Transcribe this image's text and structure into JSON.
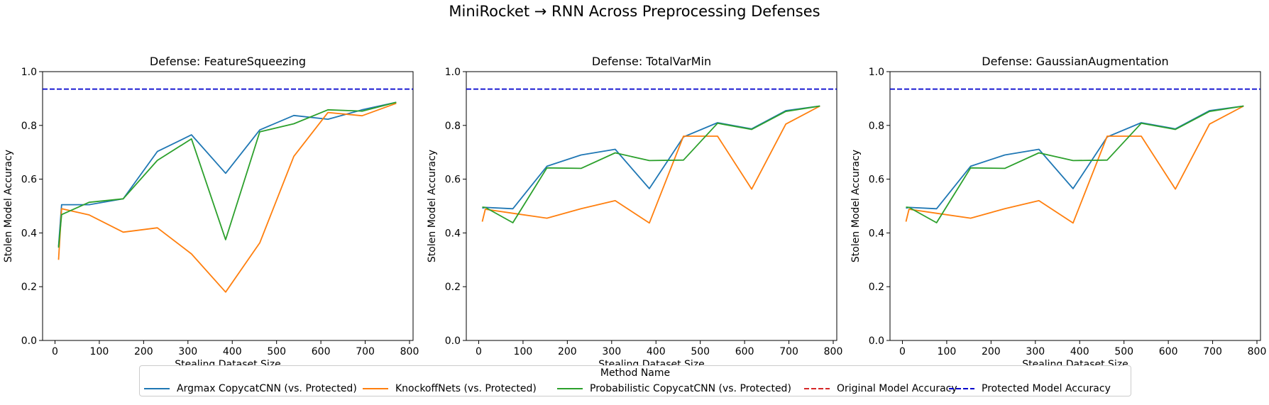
{
  "title": "MiniRocket → RNN Across Preprocessing Defenses",
  "colors": {
    "argmax": "#1f77b4",
    "knockoff": "#ff7f0e",
    "probabilistic": "#2ca02c",
    "original": "#d62728",
    "protected": "#0000cc"
  },
  "legend": {
    "title": "Method Name",
    "items": [
      {
        "label": "Argmax CopycatCNN (vs. Protected)",
        "color_key": "argmax",
        "dashed": false
      },
      {
        "label": "KnockoffNets (vs. Protected)",
        "color_key": "knockoff",
        "dashed": false
      },
      {
        "label": "Probabilistic CopycatCNN (vs. Protected)",
        "color_key": "probabilistic",
        "dashed": false
      },
      {
        "label": "Original Model Accuracy",
        "color_key": "original",
        "dashed": true
      },
      {
        "label": "Protected Model Accuracy",
        "color_key": "protected",
        "dashed": true
      }
    ]
  },
  "chart_data": [
    {
      "type": "line",
      "title": "Defense: FeatureSqueezing",
      "xlabel": "Stealing Dataset Size",
      "ylabel": "Stolen Model Accuracy",
      "xlim": [
        -28,
        808
      ],
      "ylim": [
        0.0,
        1.0
      ],
      "xticks": [
        0,
        100,
        200,
        300,
        400,
        500,
        600,
        700,
        800
      ],
      "yticks": [
        0.0,
        0.2,
        0.4,
        0.6,
        0.8,
        1.0
      ],
      "protected_accuracy": 0.935,
      "series": [
        {
          "name": "Argmax CopycatCNN (vs. Protected)",
          "color_key": "argmax",
          "x": [
            8,
            15,
            77,
            154,
            231,
            308,
            385,
            462,
            539,
            616,
            693,
            770
          ],
          "y": [
            0.35,
            0.505,
            0.505,
            0.527,
            0.703,
            0.765,
            0.622,
            0.783,
            0.837,
            0.823,
            0.858,
            0.886
          ]
        },
        {
          "name": "KnockoffNets (vs. Protected)",
          "color_key": "knockoff",
          "x": [
            8,
            15,
            77,
            154,
            231,
            308,
            385,
            462,
            539,
            616,
            693,
            770
          ],
          "y": [
            0.3,
            0.49,
            0.467,
            0.403,
            0.419,
            0.322,
            0.18,
            0.363,
            0.685,
            0.848,
            0.836,
            0.882
          ]
        },
        {
          "name": "Probabilistic CopycatCNN (vs. Protected)",
          "color_key": "probabilistic",
          "x": [
            8,
            15,
            77,
            154,
            231,
            308,
            385,
            462,
            539,
            616,
            693,
            770
          ],
          "y": [
            0.345,
            0.468,
            0.514,
            0.527,
            0.67,
            0.75,
            0.375,
            0.776,
            0.806,
            0.858,
            0.853,
            0.886
          ]
        }
      ]
    },
    {
      "type": "line",
      "title": "Defense: TotalVarMin",
      "xlabel": "Stealing Dataset Size",
      "ylabel": "Stolen Model Accuracy",
      "xlim": [
        -28,
        808
      ],
      "ylim": [
        0.0,
        1.0
      ],
      "xticks": [
        0,
        100,
        200,
        300,
        400,
        500,
        600,
        700,
        800
      ],
      "yticks": [
        0.0,
        0.2,
        0.4,
        0.6,
        0.8,
        1.0
      ],
      "protected_accuracy": 0.935,
      "series": [
        {
          "name": "Argmax CopycatCNN (vs. Protected)",
          "color_key": "argmax",
          "x": [
            8,
            15,
            77,
            154,
            231,
            308,
            385,
            462,
            539,
            616,
            693,
            770
          ],
          "y": [
            0.492,
            0.495,
            0.49,
            0.648,
            0.69,
            0.711,
            0.565,
            0.757,
            0.81,
            0.787,
            0.855,
            0.872
          ]
        },
        {
          "name": "KnockoffNets (vs. Protected)",
          "color_key": "knockoff",
          "x": [
            8,
            15,
            77,
            154,
            231,
            308,
            385,
            462,
            539,
            616,
            693,
            770
          ],
          "y": [
            0.442,
            0.488,
            0.473,
            0.455,
            0.49,
            0.52,
            0.437,
            0.76,
            0.76,
            0.563,
            0.805,
            0.872
          ]
        },
        {
          "name": "Probabilistic CopycatCNN (vs. Protected)",
          "color_key": "probabilistic",
          "x": [
            8,
            15,
            77,
            154,
            231,
            308,
            385,
            462,
            539,
            616,
            693,
            770
          ],
          "y": [
            0.496,
            0.495,
            0.438,
            0.642,
            0.64,
            0.698,
            0.669,
            0.671,
            0.808,
            0.785,
            0.852,
            0.872
          ]
        }
      ]
    },
    {
      "type": "line",
      "title": "Defense: GaussianAugmentation",
      "xlabel": "Stealing Dataset Size",
      "ylabel": "Stolen Model Accuracy",
      "xlim": [
        -28,
        808
      ],
      "ylim": [
        0.0,
        1.0
      ],
      "xticks": [
        0,
        100,
        200,
        300,
        400,
        500,
        600,
        700,
        800
      ],
      "yticks": [
        0.0,
        0.2,
        0.4,
        0.6,
        0.8,
        1.0
      ],
      "protected_accuracy": 0.935,
      "series": [
        {
          "name": "Argmax CopycatCNN (vs. Protected)",
          "color_key": "argmax",
          "x": [
            8,
            15,
            77,
            154,
            231,
            308,
            385,
            462,
            539,
            616,
            693,
            770
          ],
          "y": [
            0.492,
            0.495,
            0.49,
            0.648,
            0.69,
            0.711,
            0.565,
            0.757,
            0.81,
            0.787,
            0.855,
            0.872
          ]
        },
        {
          "name": "KnockoffNets (vs. Protected)",
          "color_key": "knockoff",
          "x": [
            8,
            15,
            77,
            154,
            231,
            308,
            385,
            462,
            539,
            616,
            693,
            770
          ],
          "y": [
            0.442,
            0.488,
            0.473,
            0.455,
            0.49,
            0.52,
            0.437,
            0.76,
            0.76,
            0.563,
            0.805,
            0.872
          ]
        },
        {
          "name": "Probabilistic CopycatCNN (vs. Protected)",
          "color_key": "probabilistic",
          "x": [
            8,
            15,
            77,
            154,
            231,
            308,
            385,
            462,
            539,
            616,
            693,
            770
          ],
          "y": [
            0.496,
            0.495,
            0.438,
            0.642,
            0.64,
            0.698,
            0.669,
            0.671,
            0.808,
            0.785,
            0.852,
            0.872
          ]
        }
      ]
    }
  ]
}
